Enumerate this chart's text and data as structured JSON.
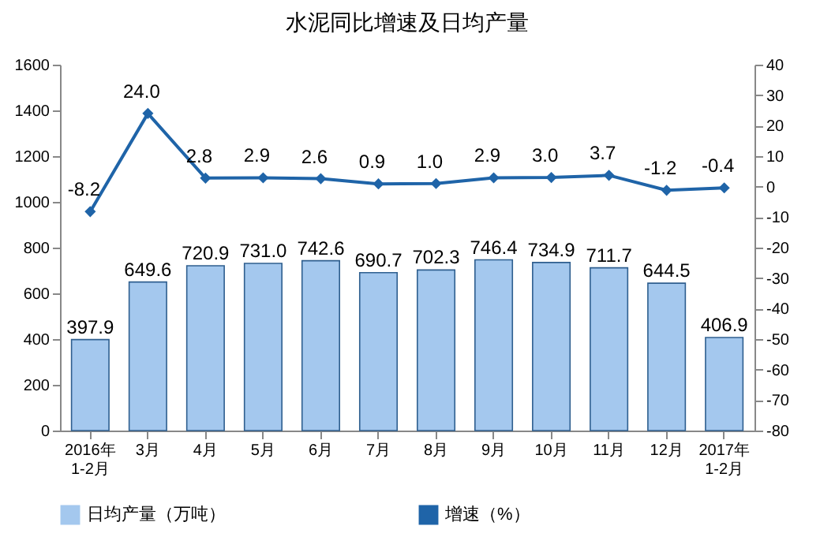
{
  "chart_data": {
    "type": "bar",
    "title": "水泥同比增速及日均产量",
    "categories": [
      "2016年\n1-2月",
      "3月",
      "4月",
      "5月",
      "6月",
      "7月",
      "8月",
      "9月",
      "10月",
      "11月",
      "12月",
      "2017年\n1-2月"
    ],
    "series": [
      {
        "name": "日均产量（万吨）",
        "color": "#a4c8ee",
        "values": [
          397.9,
          649.6,
          720.9,
          731.0,
          742.6,
          690.7,
          702.3,
          746.4,
          734.9,
          711.7,
          644.5,
          406.9
        ],
        "value_labels": [
          "397.9",
          "649.6",
          "720.9",
          "731.0",
          "742.6",
          "690.7",
          "702.3",
          "746.4",
          "734.9",
          "711.7",
          "644.5",
          "406.9"
        ]
      },
      {
        "name": "增速（%）",
        "type": "line",
        "axis": "y2",
        "color": "#1f64a8",
        "values": [
          -8.2,
          24.0,
          2.8,
          2.9,
          2.6,
          0.9,
          1.0,
          2.9,
          3.0,
          3.7,
          -1.2,
          -0.4
        ],
        "value_labels": [
          "-8.2",
          "24.0",
          "2.8",
          "2.9",
          "2.6",
          "0.9",
          "1.0",
          "2.9",
          "3.0",
          "3.7",
          "-1.2",
          "-0.4"
        ]
      }
    ],
    "ylim": [
      0,
      1600
    ],
    "yticks": [
      0,
      200,
      400,
      600,
      800,
      1000,
      1200,
      1400,
      1600
    ],
    "y2lim": [
      -80,
      40
    ],
    "y2ticks": [
      -80,
      -70,
      -60,
      -50,
      -40,
      -30,
      -20,
      -10,
      0,
      10,
      20,
      30,
      40
    ],
    "marker": "diamond",
    "legend": "bottom"
  }
}
